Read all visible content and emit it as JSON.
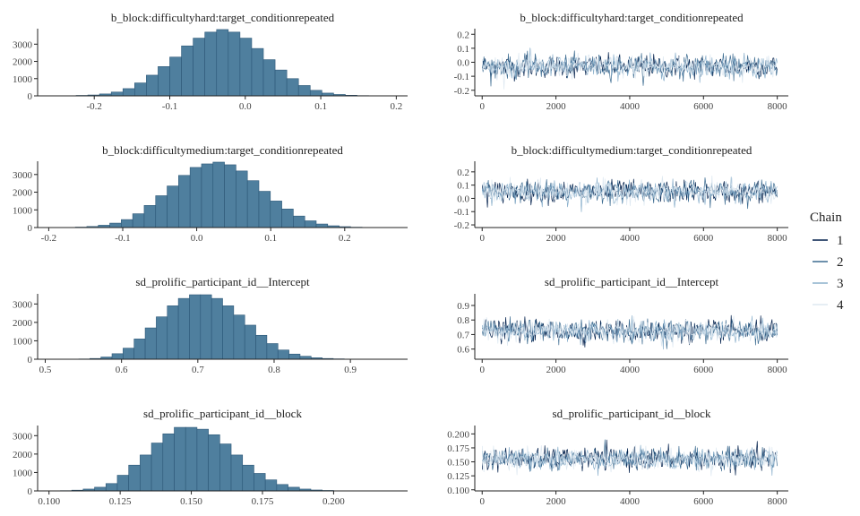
{
  "legend": {
    "title": "Chain",
    "entries": [
      {
        "label": "1",
        "color": "#011f4b"
      },
      {
        "label": "2",
        "color": "#3d6c91"
      },
      {
        "label": "3",
        "color": "#8bb0cc"
      },
      {
        "label": "4",
        "color": "#dde8f1"
      }
    ]
  },
  "colors": {
    "hist_fill": "#4f7f9e",
    "hist_stroke": "#2c5777",
    "axis": "#222222"
  },
  "chart_data": [
    {
      "type": "bar",
      "title": "b_block:difficultyhard:target_conditionrepeated",
      "xlim": [
        -0.275,
        0.215
      ],
      "ylim": [
        0,
        3900
      ],
      "xticks": [
        -0.2,
        -0.1,
        0.0,
        0.1,
        0.2
      ],
      "xtick_labels": [
        "-0.2",
        "-0.1",
        "0.0",
        "0.1",
        "0.2"
      ],
      "yticks": [
        0,
        1000,
        2000,
        3000
      ],
      "ytick_labels": [
        "0",
        "1000",
        "2000",
        "3000"
      ],
      "bin_start": -0.255,
      "bin_width": 0.0155,
      "counts": [
        5,
        10,
        25,
        50,
        110,
        220,
        420,
        750,
        1200,
        1700,
        2250,
        2900,
        3350,
        3700,
        3850,
        3700,
        3350,
        2750,
        2100,
        1500,
        1000,
        600,
        320,
        160,
        80,
        35,
        15,
        8,
        4,
        2
      ]
    },
    {
      "type": "line",
      "title": "b_block:difficultyhard:target_conditionrepeated",
      "xlim": [
        -200,
        8300
      ],
      "ylim": [
        -0.24,
        0.24
      ],
      "xticks": [
        0,
        2000,
        4000,
        6000,
        8000
      ],
      "xtick_labels": [
        "0",
        "2000",
        "4000",
        "6000",
        "8000"
      ],
      "yticks": [
        -0.2,
        -0.1,
        0.0,
        0.1,
        0.2
      ],
      "ytick_labels": [
        "-0.2",
        "-0.1",
        "0.0",
        "0.1",
        "0.2"
      ],
      "iterations": [
        1,
        8000
      ],
      "series": [
        {
          "name": "1",
          "center": -0.03,
          "spread": 0.065
        },
        {
          "name": "2",
          "center": -0.03,
          "spread": 0.065
        },
        {
          "name": "3",
          "center": -0.03,
          "spread": 0.065
        },
        {
          "name": "4",
          "center": -0.03,
          "spread": 0.065
        }
      ]
    },
    {
      "type": "bar",
      "title": "b_block:difficultymedium:target_conditionrepeated",
      "xlim": [
        -0.215,
        0.285
      ],
      "ylim": [
        0,
        3750
      ],
      "xticks": [
        -0.2,
        -0.1,
        0.0,
        0.1,
        0.2
      ],
      "xtick_labels": [
        "-0.2",
        "-0.1",
        "0.0",
        "0.1",
        "0.2"
      ],
      "yticks": [
        0,
        1000,
        2000,
        3000
      ],
      "ytick_labels": [
        "0",
        "1000",
        "2000",
        "3000"
      ],
      "bin_start": -0.195,
      "bin_width": 0.0155,
      "counts": [
        5,
        10,
        25,
        60,
        130,
        250,
        450,
        780,
        1250,
        1800,
        2350,
        2950,
        3400,
        3600,
        3700,
        3550,
        3200,
        2650,
        2050,
        1500,
        1050,
        650,
        380,
        200,
        100,
        50,
        20,
        10,
        5,
        2
      ]
    },
    {
      "type": "line",
      "title": "b_block:difficultymedium:target_conditionrepeated",
      "xlim": [
        -200,
        8300
      ],
      "ylim": [
        -0.22,
        0.28
      ],
      "xticks": [
        0,
        2000,
        4000,
        6000,
        8000
      ],
      "xtick_labels": [
        "0",
        "2000",
        "4000",
        "6000",
        "8000"
      ],
      "yticks": [
        -0.2,
        -0.1,
        0.0,
        0.1,
        0.2
      ],
      "ytick_labels": [
        "-0.2",
        "-0.1",
        "0.0",
        "0.1",
        "0.2"
      ],
      "iterations": [
        1,
        8000
      ],
      "series": [
        {
          "name": "1",
          "center": 0.05,
          "spread": 0.065
        },
        {
          "name": "2",
          "center": 0.05,
          "spread": 0.065
        },
        {
          "name": "3",
          "center": 0.05,
          "spread": 0.065
        },
        {
          "name": "4",
          "center": 0.05,
          "spread": 0.065
        }
      ]
    },
    {
      "type": "bar",
      "title": "sd_prolific_participant_id__Intercept",
      "xlim": [
        0.49,
        0.975
      ],
      "ylim": [
        0,
        3550
      ],
      "xticks": [
        0.5,
        0.6,
        0.7,
        0.8,
        0.9
      ],
      "xtick_labels": [
        "0.5",
        "0.6",
        "0.7",
        "0.8",
        "0.9"
      ],
      "yticks": [
        0,
        1000,
        2000,
        3000
      ],
      "ytick_labels": [
        "0",
        "1000",
        "2000",
        "3000"
      ],
      "bin_start": 0.515,
      "bin_width": 0.0145,
      "counts": [
        2,
        5,
        15,
        40,
        120,
        300,
        600,
        1100,
        1700,
        2300,
        2900,
        3300,
        3500,
        3500,
        3300,
        2900,
        2400,
        1850,
        1300,
        850,
        500,
        280,
        160,
        80,
        40,
        20,
        10,
        5,
        3,
        1
      ]
    },
    {
      "type": "line",
      "title": "sd_prolific_participant_id__Intercept",
      "xlim": [
        -200,
        8300
      ],
      "ylim": [
        0.53,
        0.98
      ],
      "xticks": [
        0,
        2000,
        4000,
        6000,
        8000
      ],
      "xtick_labels": [
        "0",
        "2000",
        "4000",
        "6000",
        "8000"
      ],
      "yticks": [
        0.6,
        0.7,
        0.8,
        0.9
      ],
      "ytick_labels": [
        "0.6",
        "0.7",
        "0.8",
        "0.9"
      ],
      "iterations": [
        1,
        8000
      ],
      "series": [
        {
          "name": "1",
          "center": 0.725,
          "spread": 0.06
        },
        {
          "name": "2",
          "center": 0.725,
          "spread": 0.06
        },
        {
          "name": "3",
          "center": 0.725,
          "spread": 0.06
        },
        {
          "name": "4",
          "center": 0.725,
          "spread": 0.06
        }
      ]
    },
    {
      "type": "bar",
      "title": "sd_prolific_participant_id__block",
      "xlim": [
        0.096,
        0.226
      ],
      "ylim": [
        0,
        3550
      ],
      "xticks": [
        0.1,
        0.125,
        0.15,
        0.175,
        0.2
      ],
      "xtick_labels": [
        "0.100",
        "0.125",
        "0.150",
        "0.175",
        "0.200"
      ],
      "yticks": [
        0,
        1000,
        2000,
        3000
      ],
      "ytick_labels": [
        "0",
        "1000",
        "2000",
        "3000"
      ],
      "bin_start": 0.1,
      "bin_width": 0.004,
      "counts": [
        5,
        15,
        40,
        100,
        200,
        400,
        850,
        1400,
        1950,
        2600,
        3100,
        3450,
        3450,
        3350,
        3050,
        2550,
        1950,
        1400,
        950,
        600,
        350,
        200,
        100,
        50,
        25,
        10,
        5,
        2,
        1,
        1
      ]
    },
    {
      "type": "line",
      "title": "sd_prolific_participant_id__block",
      "xlim": [
        -200,
        8300
      ],
      "ylim": [
        0.098,
        0.215
      ],
      "xticks": [
        0,
        2000,
        4000,
        6000,
        8000
      ],
      "xtick_labels": [
        "0",
        "2000",
        "4000",
        "6000",
        "8000"
      ],
      "yticks": [
        0.1,
        0.125,
        0.15,
        0.175,
        0.2
      ],
      "ytick_labels": [
        "0.100",
        "0.125",
        "0.150",
        "0.175",
        "0.200"
      ],
      "iterations": [
        1,
        8000
      ],
      "series": [
        {
          "name": "1",
          "center": 0.155,
          "spread": 0.0155
        },
        {
          "name": "2",
          "center": 0.155,
          "spread": 0.0155
        },
        {
          "name": "3",
          "center": 0.155,
          "spread": 0.0155
        },
        {
          "name": "4",
          "center": 0.155,
          "spread": 0.0155
        }
      ]
    }
  ]
}
